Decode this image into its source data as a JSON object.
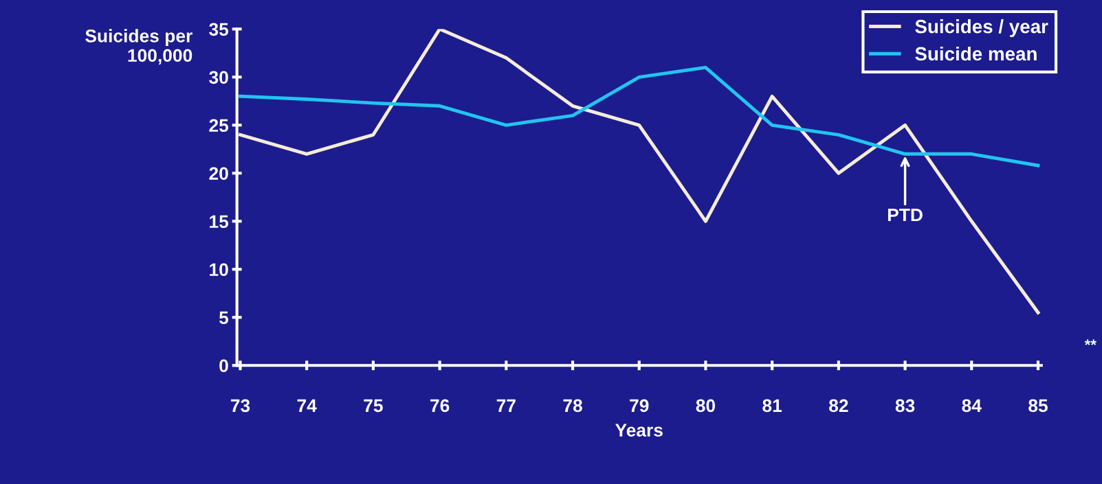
{
  "chart_data": {
    "type": "line",
    "xlabel": "Years",
    "ylabel": "Suicides per\n100,000",
    "categories": [
      "73",
      "74",
      "75",
      "76",
      "77",
      "78",
      "79",
      "80",
      "81",
      "82",
      "83",
      "84",
      "85"
    ],
    "series": [
      {
        "name": "Suicides / year",
        "color": "#f5ecd8",
        "values": [
          24,
          22,
          24,
          35,
          32,
          27,
          25,
          15,
          28,
          20,
          25,
          15,
          5.5
        ]
      },
      {
        "name": "Suicide mean",
        "color": "#22c4f0",
        "values": [
          28,
          27.7,
          27.3,
          27,
          25,
          26,
          30,
          31,
          25,
          24,
          22,
          22,
          20.8
        ]
      }
    ],
    "ylim": [
      0,
      35
    ],
    "yticks": [
      0,
      5,
      10,
      15,
      20,
      25,
      30,
      35
    ],
    "grid": false,
    "legend": "top right",
    "marker": "none",
    "line_style": "solid",
    "annotations": [
      {
        "text": "PTD",
        "x": "83",
        "y": 22
      },
      "**"
    ]
  }
}
